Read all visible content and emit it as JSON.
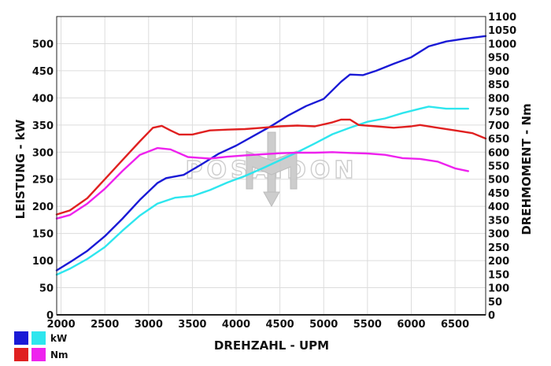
{
  "watermark": "POSAIDON",
  "legend": {
    "items": [
      {
        "label": "kW",
        "colors": [
          "#1a1ad6",
          "#2ee6ee"
        ]
      },
      {
        "label": "Nm",
        "colors": [
          "#e02020",
          "#ee22ee"
        ]
      }
    ]
  },
  "chart_data": {
    "type": "line",
    "title": "",
    "xlabel": "DREHZAHL - UPM",
    "ylabel": "LEISTUNG - kW",
    "y2label": "DREHMOMENT - Nm",
    "xlim": [
      1950,
      6850
    ],
    "ylim": [
      0,
      550
    ],
    "y2lim": [
      0,
      1100
    ],
    "x_ticks": [
      2000,
      2500,
      3000,
      3500,
      4000,
      4500,
      5000,
      5500,
      6000,
      6500
    ],
    "y_ticks": [
      0,
      50,
      100,
      150,
      200,
      250,
      300,
      350,
      400,
      450,
      500
    ],
    "y2_ticks": [
      0,
      50,
      100,
      150,
      200,
      250,
      300,
      350,
      400,
      450,
      500,
      550,
      600,
      650,
      700,
      750,
      800,
      850,
      900,
      950,
      1000,
      1050,
      1100
    ],
    "grid": true,
    "legend_position": "bottom-left",
    "series": [
      {
        "axis": "left",
        "color": "#1a1ad6",
        "x": [
          1950,
          2100,
          2300,
          2500,
          2700,
          2900,
          3100,
          3200,
          3400,
          3600,
          3800,
          4000,
          4200,
          4400,
          4600,
          4800,
          5000,
          5200,
          5300,
          5450,
          5600,
          5800,
          6000,
          6200,
          6400,
          6600,
          6750,
          6850
        ],
        "values": [
          82,
          97,
          118,
          145,
          177,
          212,
          243,
          252,
          258,
          277,
          297,
          312,
          330,
          348,
          368,
          385,
          398,
          430,
          443,
          442,
          450,
          463,
          475,
          495,
          504,
          509,
          512,
          514
        ]
      },
      {
        "axis": "left",
        "color": "#2ee6ee",
        "x": [
          1950,
          2100,
          2300,
          2500,
          2700,
          2900,
          3100,
          3300,
          3500,
          3700,
          3900,
          4100,
          4300,
          4500,
          4700,
          4900,
          5100,
          5300,
          5500,
          5700,
          5900,
          6100,
          6200,
          6400,
          6650
        ],
        "values": [
          74,
          85,
          103,
          125,
          155,
          183,
          205,
          216,
          219,
          230,
          244,
          256,
          270,
          285,
          300,
          316,
          333,
          345,
          356,
          362,
          372,
          380,
          384,
          380,
          380
        ]
      },
      {
        "axis": "right",
        "color": "#e02020",
        "x": [
          1950,
          2100,
          2300,
          2500,
          2700,
          2900,
          3050,
          3150,
          3250,
          3350,
          3500,
          3700,
          3900,
          4100,
          4300,
          4500,
          4700,
          4900,
          5100,
          5200,
          5300,
          5400,
          5600,
          5800,
          6000,
          6100,
          6300,
          6500,
          6700,
          6850
        ],
        "values": [
          370,
          385,
          430,
          500,
          570,
          640,
          690,
          697,
          680,
          665,
          665,
          680,
          683,
          685,
          690,
          695,
          698,
          695,
          710,
          720,
          720,
          700,
          695,
          690,
          695,
          700,
          690,
          680,
          670,
          650
        ]
      },
      {
        "axis": "right",
        "color": "#ee22ee",
        "x": [
          1950,
          2100,
          2300,
          2500,
          2700,
          2900,
          3100,
          3250,
          3450,
          3700,
          3900,
          4100,
          4300,
          4500,
          4700,
          4900,
          5100,
          5300,
          5500,
          5700,
          5900,
          6100,
          6300,
          6500,
          6650
        ],
        "values": [
          355,
          368,
          410,
          465,
          530,
          590,
          615,
          610,
          582,
          576,
          583,
          588,
          592,
          596,
          598,
          598,
          600,
          597,
          595,
          590,
          578,
          575,
          565,
          540,
          530
        ]
      }
    ]
  }
}
